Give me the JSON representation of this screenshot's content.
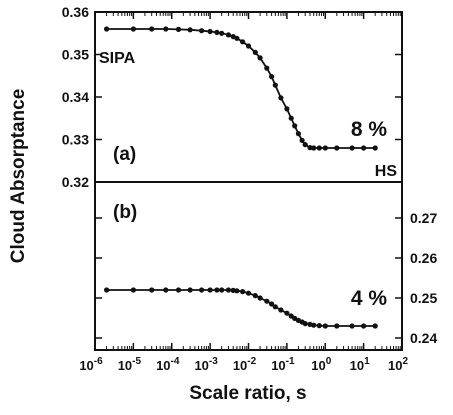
{
  "chart_data": {
    "type": "scatter",
    "xlabel": "Scale ratio, s",
    "ylabel": "Cloud Absorptance",
    "xscale": "log",
    "xlim": [
      1e-06,
      100
    ],
    "x_ticks": [
      1e-06,
      1e-05,
      0.0001,
      0.001,
      0.01,
      0.1,
      1,
      10,
      100
    ],
    "x_tick_labels": [
      {
        "base": "10",
        "exp": "-6"
      },
      {
        "base": "10",
        "exp": "-5"
      },
      {
        "base": "10",
        "exp": "-4"
      },
      {
        "base": "10",
        "exp": "-3"
      },
      {
        "base": "10",
        "exp": "-2"
      },
      {
        "base": "10",
        "exp": "-1"
      },
      {
        "base": "10",
        "exp": "0"
      },
      {
        "base": "10",
        "exp": "1"
      },
      {
        "base": "10",
        "exp": "2"
      }
    ],
    "panels": [
      {
        "label": "(a)",
        "y_axis_side": "left",
        "ylim": [
          0.32,
          0.36
        ],
        "y_ticks": [
          0.32,
          0.33,
          0.34,
          0.35,
          0.36
        ],
        "y_tick_labels": [
          "0.32",
          "0.33",
          "0.34",
          "0.35",
          "0.36"
        ],
        "annotations": {
          "left": "SIPA",
          "right": "HS",
          "percent": "8 %"
        },
        "series": [
          {
            "x": [
              2e-06,
              1e-05,
              3e-05,
              7e-05,
              0.00015,
              0.0003,
              0.0006,
              0.001,
              0.0015,
              0.002,
              0.003,
              0.004,
              0.005,
              0.007,
              0.01,
              0.015,
              0.02,
              0.03,
              0.04,
              0.05,
              0.07,
              0.1,
              0.13,
              0.16,
              0.2,
              0.25,
              0.3,
              0.4,
              0.5,
              0.7,
              1,
              2,
              5,
              10,
              20
            ],
            "y": [
              0.356,
              0.356,
              0.356,
              0.356,
              0.3559,
              0.3558,
              0.3556,
              0.3554,
              0.3552,
              0.355,
              0.3546,
              0.3542,
              0.3538,
              0.353,
              0.352,
              0.3505,
              0.3492,
              0.3468,
              0.3448,
              0.3428,
              0.3398,
              0.3372,
              0.335,
              0.3332,
              0.3314,
              0.3298,
              0.3288,
              0.3281,
              0.328,
              0.328,
              0.328,
              0.328,
              0.328,
              0.328,
              0.328
            ]
          }
        ]
      },
      {
        "label": "(b)",
        "y_axis_side": "right",
        "ylim": [
          0.24,
          0.28
        ],
        "y_ticks": [
          0.24,
          0.25,
          0.26,
          0.27
        ],
        "y_tick_labels": [
          "0.24",
          "0.25",
          "0.26",
          "0.27"
        ],
        "annotations": {
          "percent": "4 %"
        },
        "series": [
          {
            "x": [
              2e-06,
              1e-05,
              3e-05,
              7e-05,
              0.00015,
              0.0003,
              0.0006,
              0.001,
              0.0015,
              0.002,
              0.003,
              0.004,
              0.005,
              0.007,
              0.01,
              0.015,
              0.02,
              0.03,
              0.04,
              0.05,
              0.07,
              0.1,
              0.13,
              0.16,
              0.2,
              0.25,
              0.3,
              0.4,
              0.5,
              0.7,
              1,
              2,
              5,
              10,
              20
            ],
            "y": [
              0.252,
              0.252,
              0.252,
              0.252,
              0.252,
              0.252,
              0.252,
              0.252,
              0.252,
              0.252,
              0.252,
              0.2519,
              0.2518,
              0.2516,
              0.2512,
              0.2506,
              0.25,
              0.2492,
              0.2485,
              0.2478,
              0.247,
              0.2462,
              0.2455,
              0.2449,
              0.2444,
              0.244,
              0.2436,
              0.2434,
              0.2432,
              0.2431,
              0.243,
              0.243,
              0.243,
              0.243,
              0.243
            ]
          }
        ]
      }
    ]
  }
}
